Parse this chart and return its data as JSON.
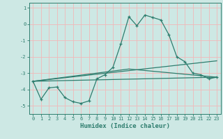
{
  "xlabel": "Humidex (Indice chaleur)",
  "ylabel": "",
  "background_color": "#cde8e4",
  "grid_color": "#f2b8b8",
  "line_color": "#2e7d6e",
  "xlim": [
    -0.5,
    23.5
  ],
  "ylim": [
    -5.5,
    1.3
  ],
  "yticks": [
    1,
    0,
    -1,
    -2,
    -3,
    -4,
    -5
  ],
  "xticks": [
    0,
    1,
    2,
    3,
    4,
    5,
    6,
    7,
    8,
    9,
    10,
    11,
    12,
    13,
    14,
    15,
    16,
    17,
    18,
    19,
    20,
    21,
    22,
    23
  ],
  "series": [
    [
      0,
      -3.5
    ],
    [
      1,
      -4.6
    ],
    [
      2,
      -3.9
    ],
    [
      3,
      -3.85
    ],
    [
      4,
      -4.5
    ],
    [
      5,
      -4.75
    ],
    [
      6,
      -4.85
    ],
    [
      7,
      -4.7
    ],
    [
      8,
      -3.35
    ],
    [
      9,
      -3.1
    ],
    [
      10,
      -2.65
    ],
    [
      11,
      -1.2
    ],
    [
      12,
      0.45
    ],
    [
      13,
      -0.1
    ],
    [
      14,
      0.55
    ],
    [
      15,
      0.4
    ],
    [
      16,
      0.25
    ],
    [
      17,
      -0.65
    ],
    [
      18,
      -2.0
    ],
    [
      19,
      -2.3
    ],
    [
      20,
      -3.0
    ],
    [
      21,
      -3.1
    ],
    [
      22,
      -3.35
    ],
    [
      23,
      -3.25
    ]
  ],
  "line2": [
    [
      0,
      -3.5
    ],
    [
      23,
      -3.25
    ]
  ],
  "line3": [
    [
      0,
      -3.5
    ],
    [
      12,
      -2.75
    ],
    [
      23,
      -3.25
    ]
  ],
  "line4": [
    [
      0,
      -3.5
    ],
    [
      23,
      -2.25
    ]
  ]
}
